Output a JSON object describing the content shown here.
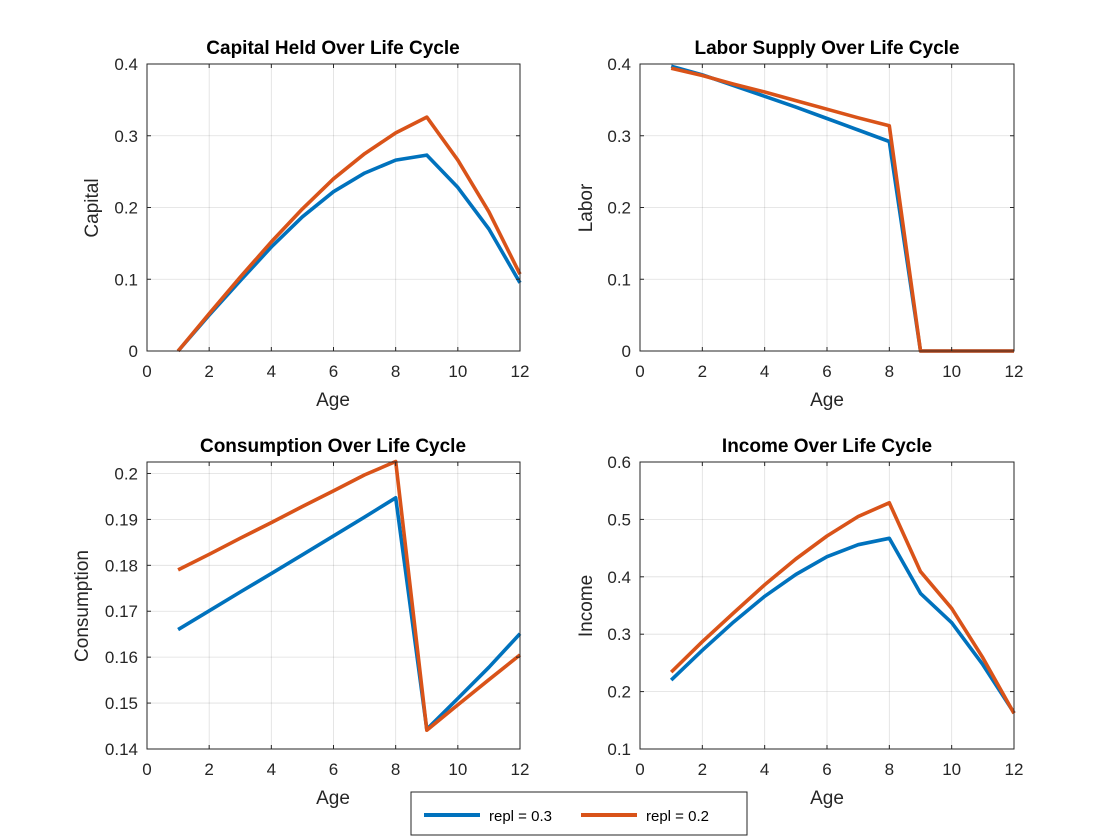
{
  "chart_data": [
    {
      "type": "line",
      "title": "Capital Held Over Life Cycle",
      "xlabel": "Age",
      "ylabel": "Capital",
      "xlim": [
        0,
        12
      ],
      "ylim": [
        0,
        0.4
      ],
      "xticks": [
        0,
        2,
        4,
        6,
        8,
        10,
        12
      ],
      "yticks": [
        0,
        0.1,
        0.2,
        0.3,
        0.4
      ],
      "grid": true,
      "x": [
        1,
        2,
        3,
        4,
        5,
        6,
        7,
        8,
        9,
        10,
        11,
        12
      ],
      "series": [
        {
          "name": "repl = 0.3",
          "color": "#0072BD",
          "values": [
            0,
            0.05,
            0.098,
            0.145,
            0.187,
            0.222,
            0.248,
            0.266,
            0.273,
            0.228,
            0.17,
            0.095
          ]
        },
        {
          "name": "repl = 0.2",
          "color": "#D95319",
          "values": [
            0,
            0.052,
            0.103,
            0.152,
            0.198,
            0.24,
            0.275,
            0.304,
            0.326,
            0.266,
            0.194,
            0.107
          ]
        }
      ]
    },
    {
      "type": "line",
      "title": "Labor Supply Over Life Cycle",
      "xlabel": "Age",
      "ylabel": "Labor",
      "xlim": [
        0,
        12
      ],
      "ylim": [
        0,
        0.4
      ],
      "xticks": [
        0,
        2,
        4,
        6,
        8,
        10,
        12
      ],
      "yticks": [
        0,
        0.1,
        0.2,
        0.3,
        0.4
      ],
      "grid": true,
      "x": [
        1,
        2,
        3,
        4,
        5,
        6,
        7,
        8,
        9,
        10,
        11,
        12
      ],
      "series": [
        {
          "name": "repl = 0.3",
          "color": "#0072BD",
          "values": [
            0.397,
            0.385,
            0.37,
            0.355,
            0.34,
            0.324,
            0.308,
            0.292,
            0,
            0,
            0,
            0
          ]
        },
        {
          "name": "repl = 0.2",
          "color": "#D95319",
          "values": [
            0.394,
            0.384,
            0.372,
            0.361,
            0.349,
            0.337,
            0.325,
            0.314,
            0,
            0,
            0,
            0
          ]
        }
      ]
    },
    {
      "type": "line",
      "title": "Consumption Over Life Cycle",
      "xlabel": "Age",
      "ylabel": "Consumption",
      "xlim": [
        0,
        12
      ],
      "ylim": [
        0.14,
        0.2025
      ],
      "xticks": [
        0,
        2,
        4,
        6,
        8,
        10,
        12
      ],
      "yticks": [
        0.14,
        0.15,
        0.16,
        0.17,
        0.18,
        0.19,
        0.2
      ],
      "grid": true,
      "x": [
        1,
        2,
        3,
        4,
        5,
        6,
        7,
        8,
        9,
        10,
        11,
        12
      ],
      "series": [
        {
          "name": "repl = 0.3",
          "color": "#0072BD",
          "values": [
            0.166,
            0.1701,
            0.1742,
            0.1782,
            0.1823,
            0.1864,
            0.1905,
            0.1947,
            0.1443,
            0.151,
            0.1578,
            0.1651
          ]
        },
        {
          "name": "repl = 0.2",
          "color": "#D95319",
          "values": [
            0.179,
            0.1824,
            0.1859,
            0.1893,
            0.1928,
            0.1962,
            0.1997,
            0.2026,
            0.1441,
            0.1496,
            0.1551,
            0.1605
          ]
        }
      ]
    },
    {
      "type": "line",
      "title": "Income Over Life Cycle",
      "xlabel": "Age",
      "ylabel": "Income",
      "xlim": [
        0,
        12
      ],
      "ylim": [
        0.1,
        0.6
      ],
      "xticks": [
        0,
        2,
        4,
        6,
        8,
        10,
        12
      ],
      "yticks": [
        0.1,
        0.2,
        0.3,
        0.4,
        0.5,
        0.6
      ],
      "grid": true,
      "x": [
        1,
        2,
        3,
        4,
        5,
        6,
        7,
        8,
        9,
        10,
        11,
        12
      ],
      "series": [
        {
          "name": "repl = 0.3",
          "color": "#0072BD",
          "values": [
            0.22,
            0.272,
            0.321,
            0.366,
            0.404,
            0.435,
            0.456,
            0.467,
            0.371,
            0.32,
            0.247,
            0.163
          ]
        },
        {
          "name": "repl = 0.2",
          "color": "#D95319",
          "values": [
            0.234,
            0.287,
            0.337,
            0.386,
            0.431,
            0.471,
            0.505,
            0.529,
            0.409,
            0.345,
            0.259,
            0.162
          ]
        }
      ]
    }
  ],
  "legend": {
    "placement": "bottom-center",
    "entries": [
      {
        "label": "repl = 0.3",
        "color": "#0072BD"
      },
      {
        "label": "repl = 0.2",
        "color": "#D95319"
      }
    ]
  }
}
